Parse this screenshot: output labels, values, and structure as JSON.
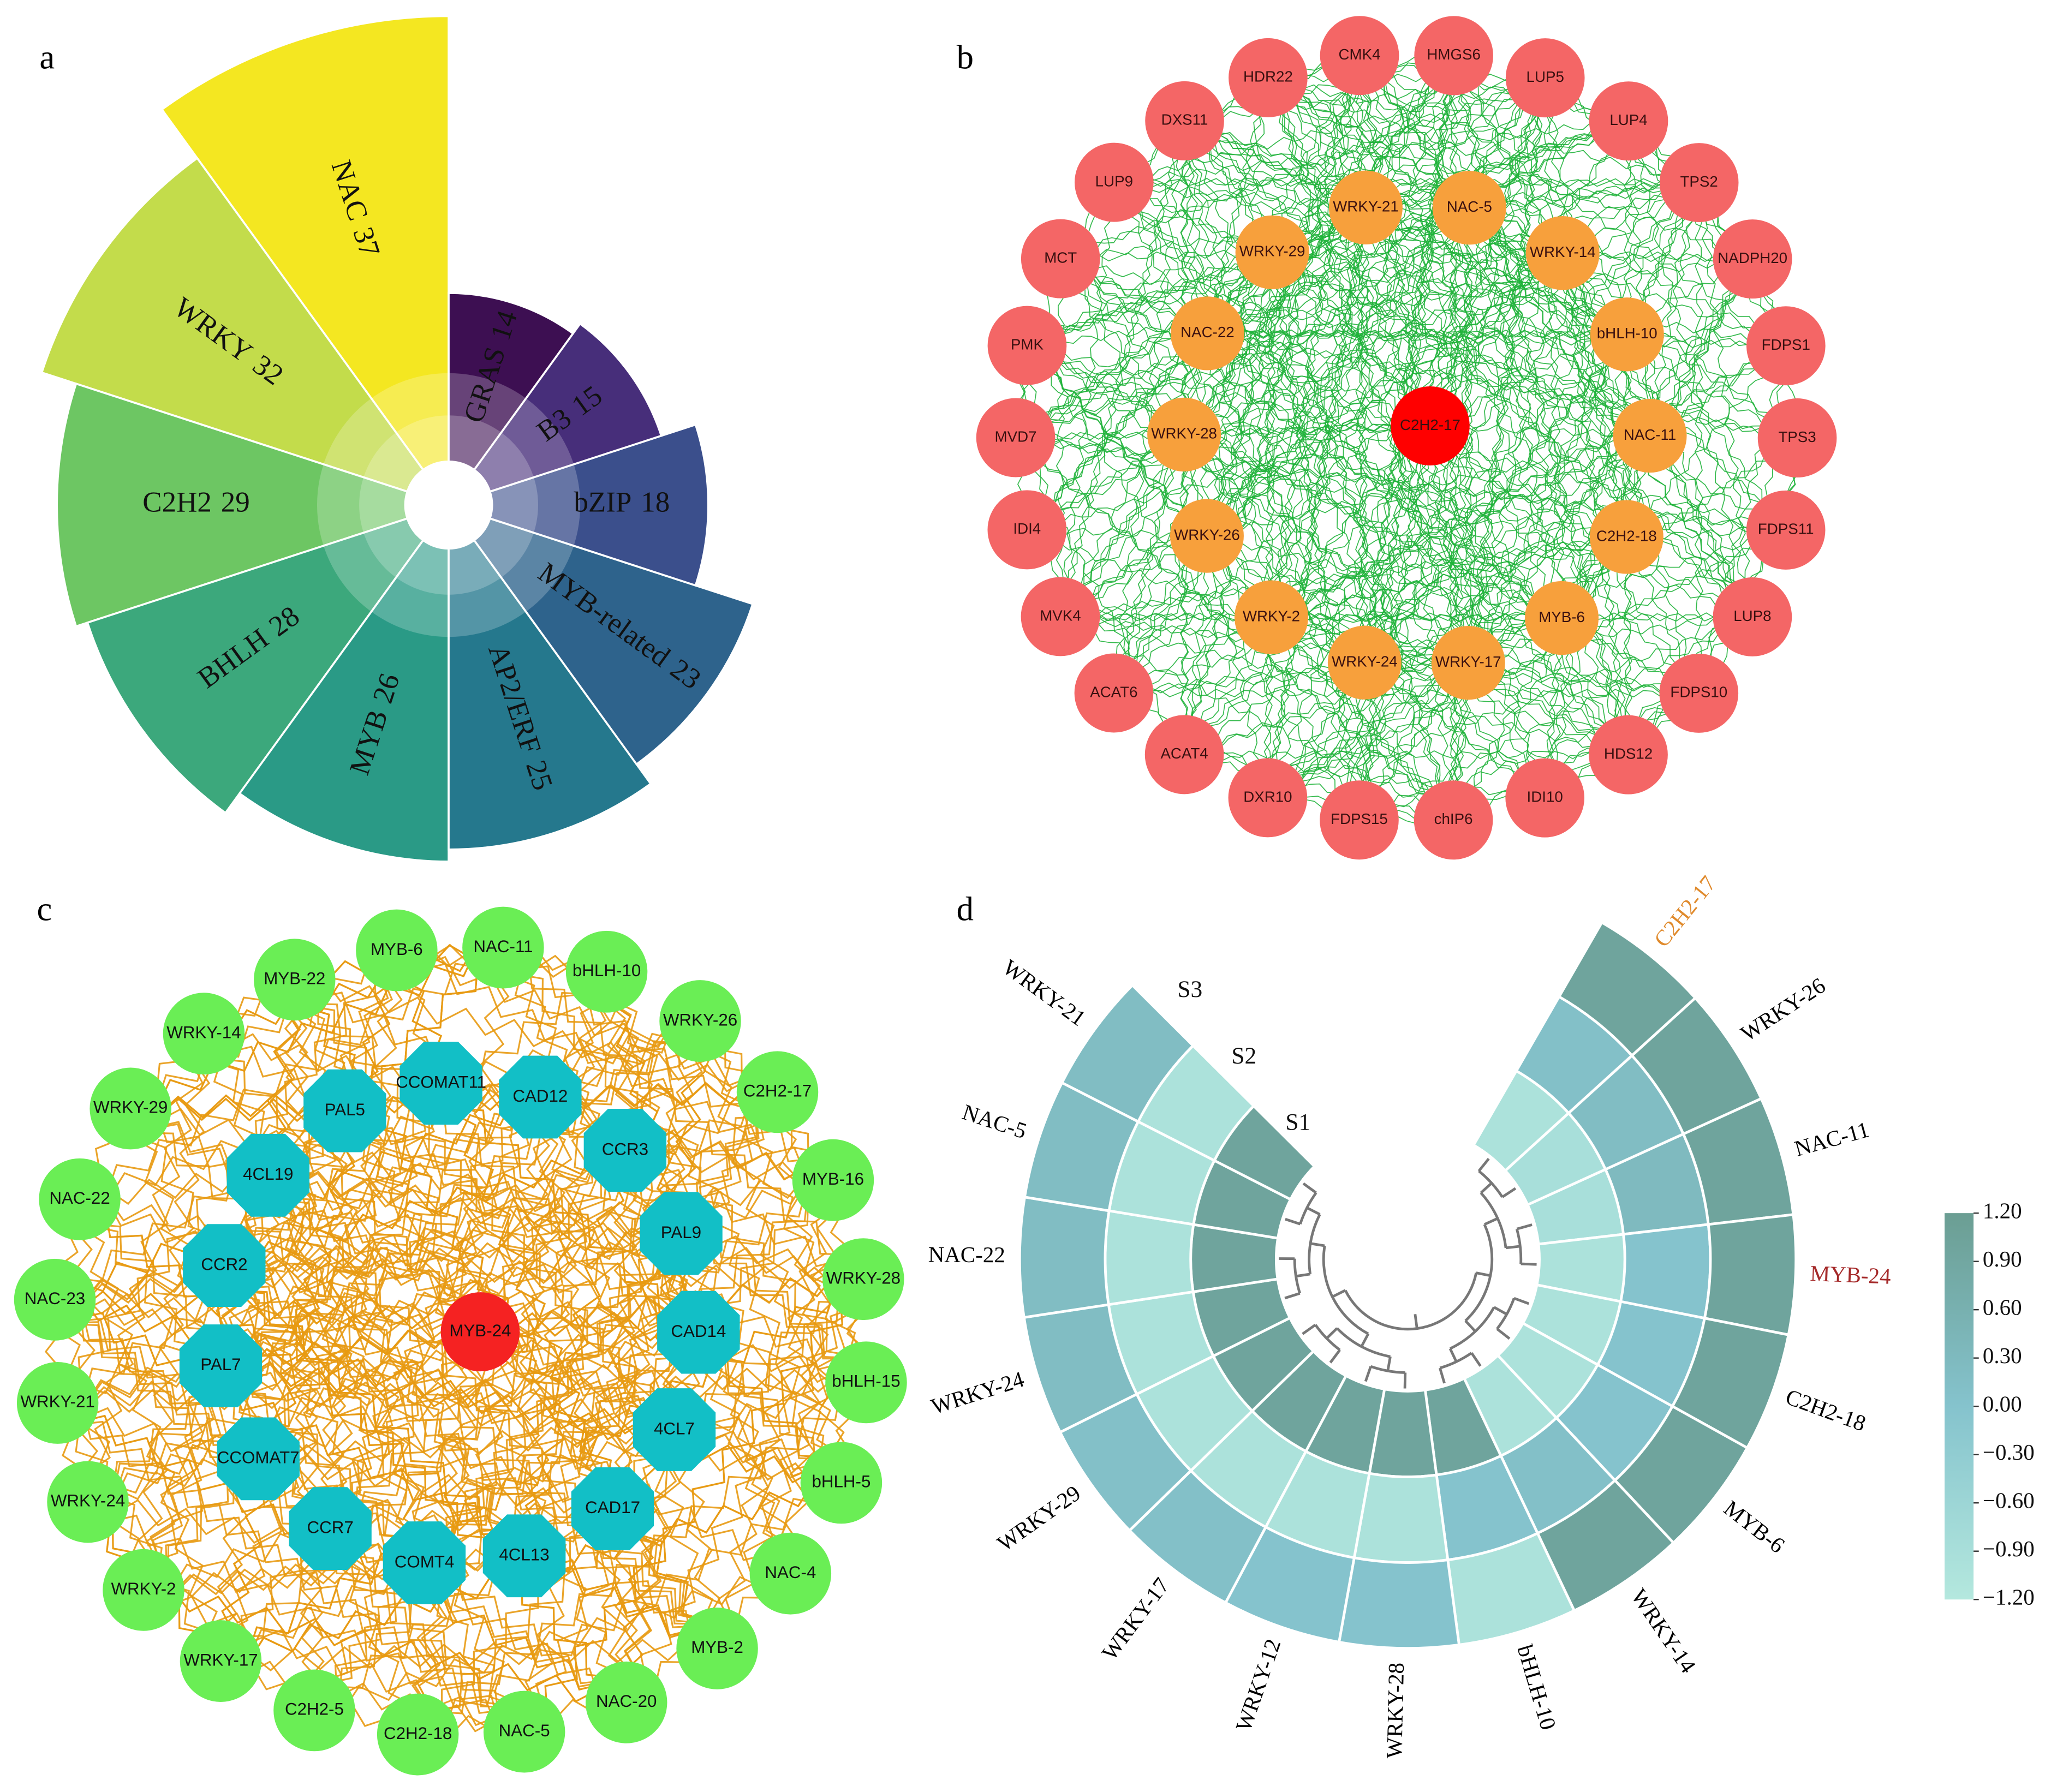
{
  "chart_data": [
    {
      "type": "polar-bar",
      "label": "a",
      "categories": [
        "NAC",
        "WRKY",
        "C2H2",
        "BHLH",
        "MYB",
        "AP2/ERF",
        "MYB-related",
        "bZIP",
        "B3",
        "GRAS"
      ],
      "values": [
        37,
        32,
        29,
        28,
        26,
        25,
        23,
        18,
        15,
        14
      ],
      "colors": [
        "#f4e721",
        "#c3dc4b",
        "#6dc663",
        "#3ca87c",
        "#2a9a86",
        "#25788d",
        "#2e638c",
        "#3b4f8c",
        "#472e7a",
        "#3d0f52"
      ]
    },
    {
      "type": "network",
      "label": "b",
      "center": "C2H2-17",
      "inner": [
        "NAC-5",
        "WRKY-14",
        "bHLH-10",
        "NAC-11",
        "C2H2-18",
        "MYB-6",
        "WRKY-17",
        "WRKY-24",
        "WRKY-2",
        "WRKY-26",
        "WRKY-28",
        "NAC-22",
        "WRKY-29",
        "WRKY-21"
      ],
      "outer": [
        "CMK4",
        "HMGS6",
        "LUP5",
        "LUP4",
        "TPS2",
        "NADPH20",
        "FDPS1",
        "TPS3",
        "FDPS11",
        "LUP8",
        "FDPS10",
        "HDS12",
        "IDI10",
        "chIP6",
        "FDPS15",
        "DXR10",
        "ACAT4",
        "ACAT6",
        "MVK4",
        "IDI4",
        "MVD7",
        "PMK",
        "MCT",
        "LUP9",
        "DXS11",
        "HDR22"
      ],
      "node_colors": {
        "center": "#ff0000",
        "inner": "#f7a03c",
        "outer": "#f46666"
      },
      "edge_color": "#1fb33a"
    },
    {
      "type": "network",
      "label": "c",
      "center": "MYB-24",
      "inner": [
        "CCOMAT11",
        "CAD12",
        "CCR3",
        "PAL9",
        "CAD14",
        "4CL7",
        "CAD17",
        "4CL13",
        "COMT4",
        "CCR7",
        "CCOMAT7",
        "PAL7",
        "CCR2",
        "4CL19",
        "PAL5"
      ],
      "outer": [
        "MYB-6",
        "NAC-11",
        "bHLH-10",
        "WRKY-26",
        "C2H2-17",
        "MYB-16",
        "WRKY-28",
        "bHLH-15",
        "bHLH-5",
        "NAC-4",
        "MYB-2",
        "NAC-20",
        "NAC-5",
        "C2H2-18",
        "C2H2-5",
        "WRKY-17",
        "WRKY-2",
        "WRKY-24",
        "WRKY-21",
        "NAC-23",
        "NAC-22",
        "WRKY-29",
        "WRKY-14",
        "MYB-22"
      ],
      "node_colors": {
        "center": "#f52222",
        "inner": "#12bfc6",
        "outer": "#6aee55"
      },
      "edge_color": "#e89a12"
    },
    {
      "type": "circular-heatmap",
      "label": "d",
      "categories": [
        "C2H2-17",
        "WRKY-26",
        "NAC-11",
        "MYB-24",
        "C2H2-18",
        "MYB-6",
        "WRKY-14",
        "bHLH-10",
        "WRKY-28",
        "WRKY-12",
        "WRKY-17",
        "WRKY-29",
        "WRKY-24",
        "NAC-22",
        "NAC-5",
        "WRKY-21"
      ],
      "label_colors": [
        "#e08a2c",
        "#000000",
        "#000000",
        "#a52a2a",
        "#000000",
        "#000000",
        "#000000",
        "#000000",
        "#000000",
        "#000000",
        "#000000",
        "#000000",
        "#000000",
        "#000000",
        "#000000",
        "#000000"
      ],
      "series": [
        {
          "name": "S1",
          "values": [
            -1.0,
            -0.9,
            -0.9,
            -1.0,
            -1.0,
            -1.0,
            -1.0,
            1.0,
            1.0,
            1.0,
            1.0,
            1.0,
            1.0,
            1.0,
            1.0,
            1.0
          ]
        },
        {
          "name": "S2",
          "values": [
            0.1,
            0.2,
            0.3,
            0.0,
            0.0,
            0.0,
            0.1,
            0.0,
            -1.0,
            -1.0,
            -1.0,
            -1.0,
            -1.0,
            -1.0,
            -1.0,
            -1.0
          ]
        },
        {
          "name": "S3",
          "values": [
            1.0,
            1.0,
            1.0,
            1.0,
            1.0,
            1.0,
            1.0,
            -1.0,
            0.0,
            0.0,
            0.1,
            0.1,
            0.2,
            0.2,
            0.2,
            0.2
          ]
        }
      ],
      "colormap": [
        "#b4e8de",
        "#85c3cd",
        "#6b9e93"
      ],
      "zlim": [
        -1.2,
        1.2
      ],
      "zticks": [
        {
          "value": 1.2,
          "label": "1.20"
        },
        {
          "value": 0.9,
          "label": "0.90"
        },
        {
          "value": 0.6,
          "label": "0.60"
        },
        {
          "value": 0.3,
          "label": "0.30"
        },
        {
          "value": 0,
          "label": "0.00"
        },
        {
          "value": -0.3,
          "label": "−0.30"
        },
        {
          "value": -0.6,
          "label": "−0.60"
        },
        {
          "value": -0.9,
          "label": "−0.90"
        },
        {
          "value": -1.2,
          "label": "−1.20"
        }
      ]
    }
  ]
}
